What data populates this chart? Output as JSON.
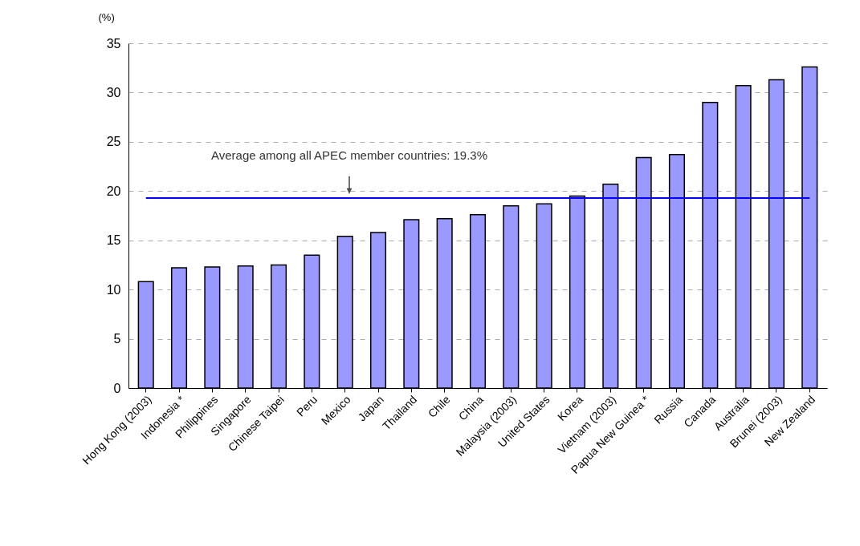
{
  "chart_data": {
    "type": "bar",
    "ylabel": "(%)",
    "categories": [
      "Hong Kong (2003)",
      "Indonesia *",
      "Philippines",
      "Singapore",
      "Chinese Taipei",
      "Peru",
      "Mexico",
      "Japan",
      "Thailand",
      "Chile",
      "China",
      "Malaysia (2003)",
      "United States",
      "Korea",
      "Vietnam (2003)",
      "Papua New Guinea *",
      "Russia",
      "Canada",
      "Australia",
      "Brunei (2003)",
      "New Zealand"
    ],
    "values": [
      10.8,
      12.2,
      12.3,
      12.4,
      12.5,
      13.5,
      15.4,
      15.8,
      17.1,
      17.2,
      17.6,
      18.5,
      18.7,
      19.5,
      20.7,
      23.4,
      23.7,
      29.0,
      30.7,
      31.3,
      32.6
    ],
    "color": "#9999ff",
    "ylim": [
      0,
      35
    ],
    "yticks": [
      0,
      5,
      10,
      15,
      20,
      25,
      30,
      35
    ],
    "grid": "y",
    "ref_lines": [
      {
        "axis": "y",
        "value": 19.3,
        "color": "#0000ff"
      }
    ],
    "annotations": [
      "Average among all APEC member countries: 19.3%"
    ]
  }
}
